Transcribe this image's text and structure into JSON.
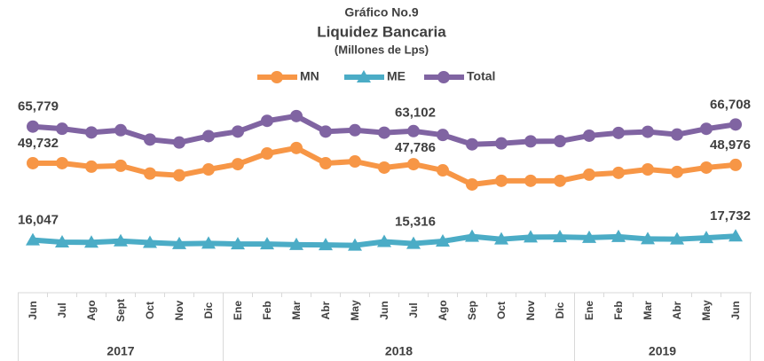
{
  "chart_data": {
    "type": "line",
    "title": "Gráfico No.9",
    "subtitle": "Liquidez Bancaria",
    "units": "(Millones de Lps)",
    "categories": [
      "Jun",
      "Jul",
      "Ago",
      "Sept",
      "Oct",
      "Nov",
      "Dic",
      "Ene",
      "Feb",
      "Mar",
      "Abr",
      "May",
      "Jun",
      "Jul",
      "Ago",
      "Sep",
      "Oct",
      "Nov",
      "Dic",
      "Ene",
      "Feb",
      "Mar",
      "Abr",
      "May",
      "Jun"
    ],
    "groups": [
      {
        "label": "2017",
        "span": 7
      },
      {
        "label": "2018",
        "span": 12
      },
      {
        "label": "2019",
        "span": 6
      }
    ],
    "ylim": [
      5000,
      75000
    ],
    "series": [
      {
        "name": "MN",
        "color": "#f79646",
        "marker": "circle",
        "values": [
          49732,
          49732,
          48200,
          48600,
          45200,
          44400,
          47000,
          49300,
          54000,
          56400,
          49700,
          50500,
          47786,
          49300,
          46600,
          40400,
          42000,
          42000,
          42000,
          44700,
          45500,
          47000,
          45900,
          47800,
          48976
        ],
        "value_labels": [
          "49,732",
          null,
          null,
          null,
          null,
          null,
          null,
          null,
          null,
          null,
          null,
          null,
          "47,786",
          null,
          null,
          null,
          null,
          null,
          null,
          null,
          null,
          null,
          null,
          null,
          "48,976"
        ]
      },
      {
        "name": "ME",
        "color": "#4bacc6",
        "marker": "triangle",
        "values": [
          16047,
          15100,
          15000,
          15600,
          14900,
          14400,
          14600,
          14300,
          14300,
          14000,
          13900,
          13700,
          15316,
          14500,
          15500,
          17600,
          16400,
          17300,
          17400,
          17100,
          17500,
          16500,
          16400,
          17000,
          17732
        ],
        "value_labels": [
          "16,047",
          null,
          null,
          null,
          null,
          null,
          null,
          null,
          null,
          null,
          null,
          null,
          "15,316",
          null,
          null,
          null,
          null,
          null,
          null,
          null,
          null,
          null,
          null,
          null,
          "17,732"
        ]
      },
      {
        "name": "Total",
        "color": "#8064a2",
        "marker": "circle",
        "values": [
          65779,
          64832,
          63200,
          64200,
          60100,
          58800,
          61600,
          63600,
          68300,
          70400,
          63600,
          64200,
          63102,
          63800,
          62100,
          58000,
          58400,
          59300,
          59400,
          61800,
          63000,
          63500,
          62300,
          64800,
          66708
        ],
        "value_labels": [
          "65,779",
          null,
          null,
          null,
          null,
          null,
          null,
          null,
          null,
          null,
          null,
          null,
          "63,102",
          null,
          null,
          null,
          null,
          null,
          null,
          null,
          null,
          null,
          null,
          null,
          "66,708"
        ]
      }
    ]
  }
}
